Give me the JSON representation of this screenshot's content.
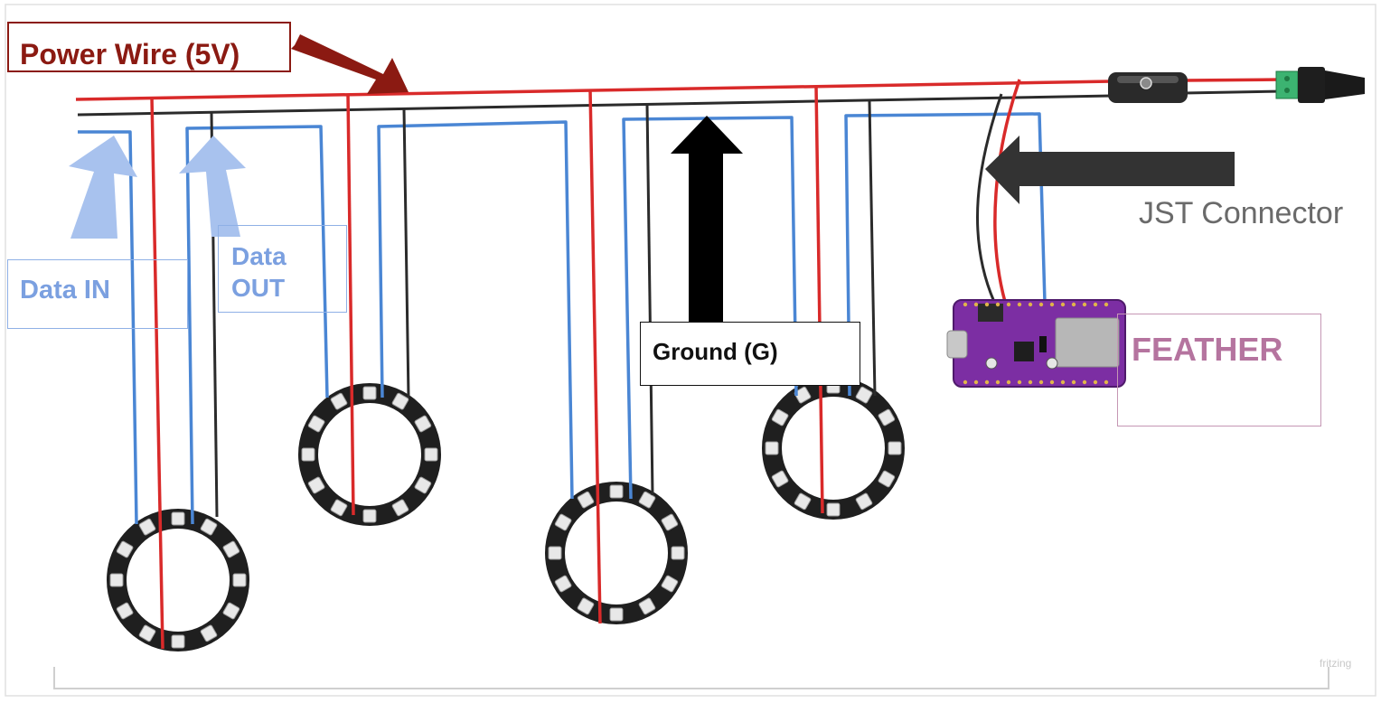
{
  "labels": {
    "power": "Power Wire (5V)",
    "data_in": "Data IN",
    "data_out": "Data OUT",
    "ground": "Ground (G)",
    "jst": "JST Connector",
    "feather": "FEATHER"
  },
  "watermark": "fritzing",
  "colors": {
    "power_wire": "#d92a2a",
    "ground_wire": "#2b2b2b",
    "data_wire": "#4a86d4",
    "power_label": "#8b1a12",
    "data_label": "#7ba0e0",
    "jst_label": "#6a6a6a",
    "feather_label": "#b5749f",
    "feather_board": "#7c2ea3",
    "ring_pcb": "#1f1f1f"
  }
}
